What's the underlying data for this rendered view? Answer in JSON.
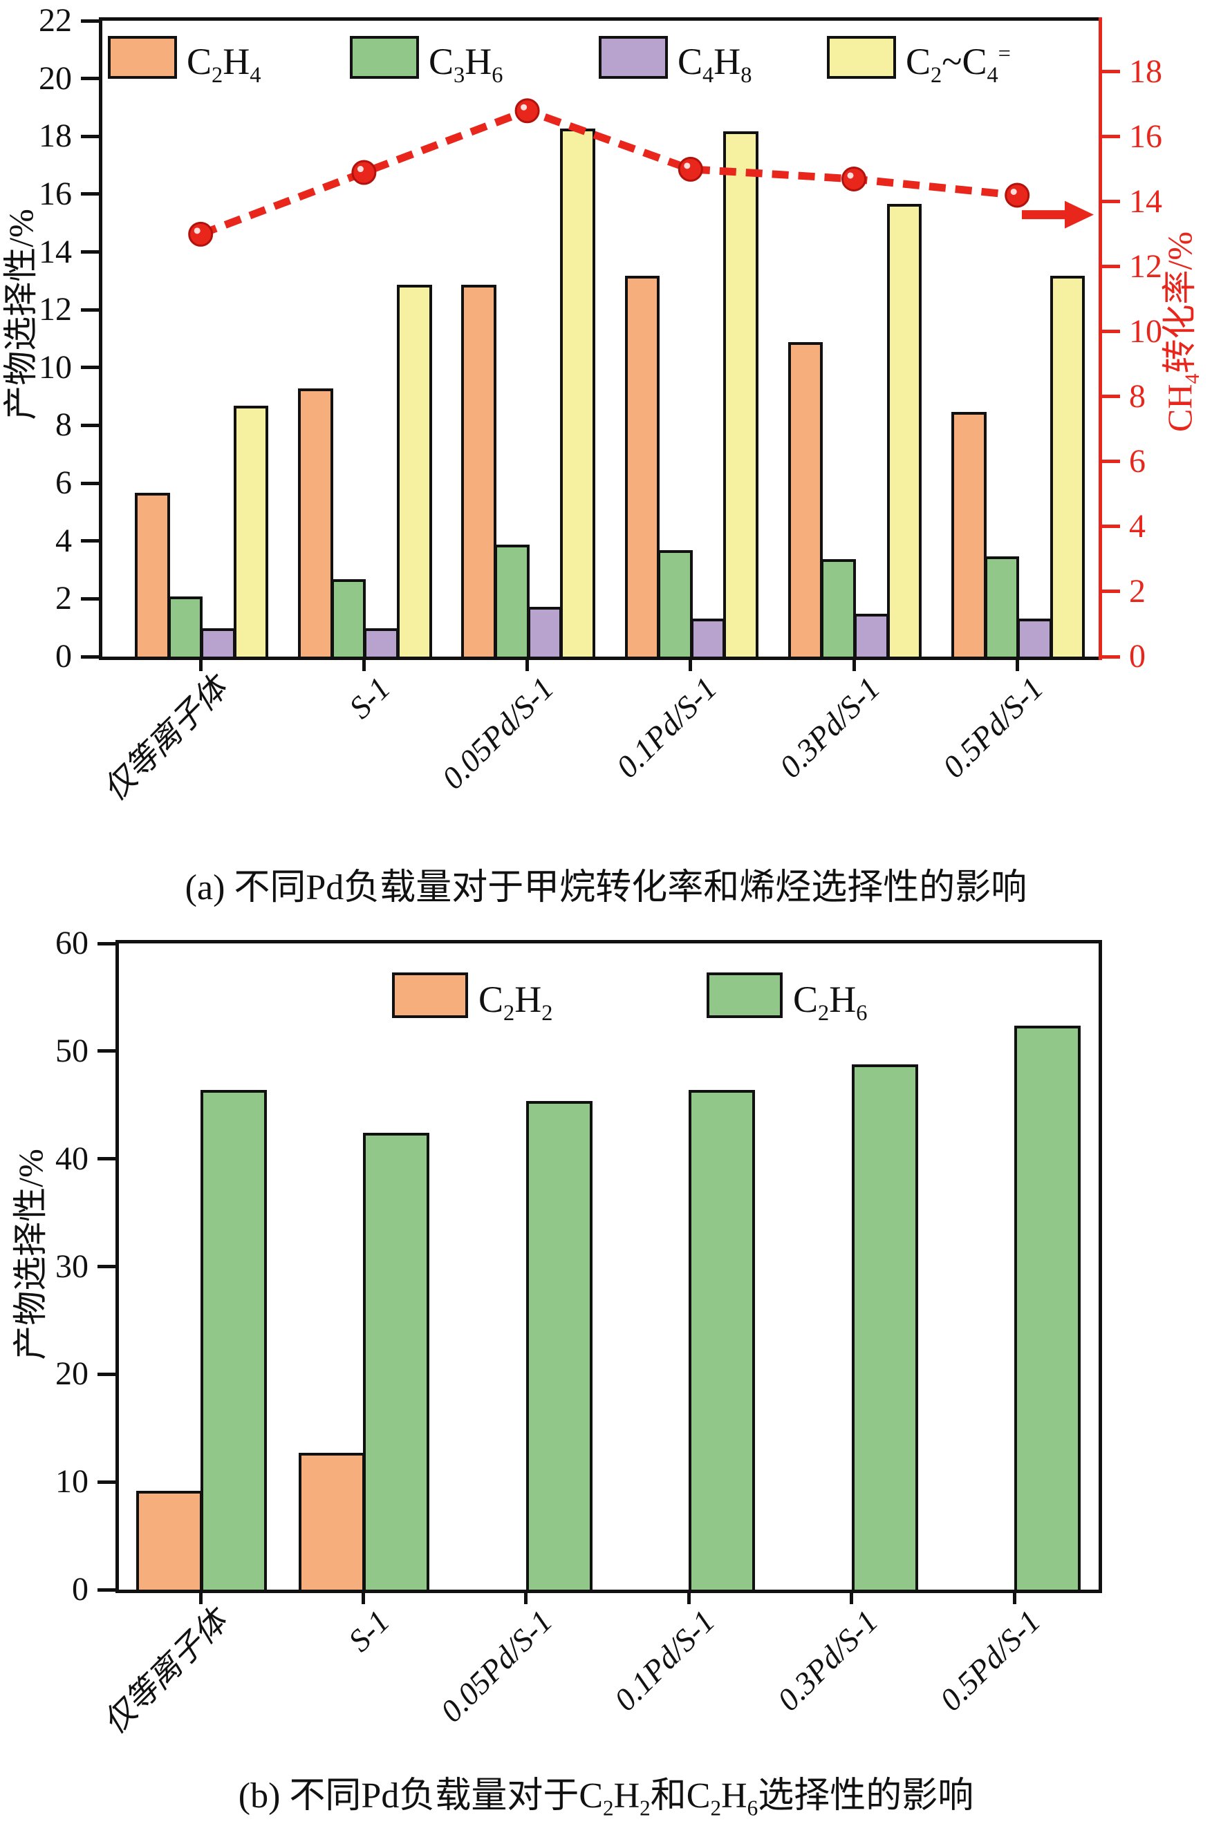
{
  "colors": {
    "c2h4_orange": "#F6AE7D",
    "c3h6_green": "#91C788",
    "c4h8_purple": "#B8A3CE",
    "c2c4_yellow": "#F5F1A1",
    "line_red": "#E8261C",
    "axis_black": "#111111"
  },
  "categories": [
    "仅等离子体",
    "S-1",
    "0.05Pd/S-1",
    "0.1Pd/S-1",
    "0.3Pd/S-1",
    "0.5Pd/S-1"
  ],
  "chart_data": [
    {
      "type": "bar",
      "panel": "a",
      "title": "(a) 不同Pd负载量对于甲烷转化率和烯烃选择性的影响",
      "categories": [
        "仅等离子体",
        "S-1",
        "0.05Pd/S-1",
        "0.1Pd/S-1",
        "0.3Pd/S-1",
        "0.5Pd/S-1"
      ],
      "ylabel_left": "产物选择性/%",
      "ylabel_right_rich": [
        {
          "t": "CH"
        },
        {
          "sub": "4"
        },
        {
          "t": "转化率/%"
        }
      ],
      "left_axis": {
        "min": 0,
        "max": 22,
        "step": 2,
        "label": "产物选择性/%"
      },
      "right_axis": {
        "min": 0,
        "max": 18,
        "step": 2,
        "top_value": 19.57,
        "label": "CH4转化率/%",
        "color": "#E8261C"
      },
      "grid": false,
      "legend_position": "top-inside",
      "legend": [
        {
          "color_key": "c2h4_orange",
          "rich": [
            {
              "t": "C"
            },
            {
              "sub": "2"
            },
            {
              "t": "H"
            },
            {
              "sub": "4"
            }
          ]
        },
        {
          "color_key": "c3h6_green",
          "rich": [
            {
              "t": "C"
            },
            {
              "sub": "3"
            },
            {
              "t": "H"
            },
            {
              "sub": "6"
            }
          ]
        },
        {
          "color_key": "c4h8_purple",
          "rich": [
            {
              "t": "C"
            },
            {
              "sub": "4"
            },
            {
              "t": "H"
            },
            {
              "sub": "8"
            }
          ]
        },
        {
          "color_key": "c2c4_yellow",
          "rich": [
            {
              "t": "C"
            },
            {
              "sub": "2"
            },
            {
              "t": "~C"
            },
            {
              "sub": "4"
            },
            {
              "sup": "="
            }
          ]
        }
      ],
      "series": [
        {
          "name": "C2H4",
          "color_key": "c2h4_orange",
          "values": [
            5.6,
            9.2,
            12.8,
            13.1,
            10.8,
            8.4
          ]
        },
        {
          "name": "C3H6",
          "color_key": "c3h6_green",
          "values": [
            2.0,
            2.6,
            3.8,
            3.6,
            3.3,
            3.4
          ]
        },
        {
          "name": "C4H8",
          "color_key": "c4h8_purple",
          "values": [
            0.9,
            0.9,
            1.65,
            1.25,
            1.4,
            1.25
          ]
        },
        {
          "name": "C2~C4=",
          "color_key": "c2c4_yellow",
          "values": [
            8.6,
            12.8,
            18.2,
            18.1,
            15.6,
            13.1
          ]
        }
      ],
      "line_series": {
        "name": "CH4转化率",
        "axis": "right",
        "color": "#E8261C",
        "style": "dashed-with-round-markers",
        "values": [
          13.0,
          14.9,
          16.8,
          15.0,
          14.7,
          14.2
        ],
        "arrow_annotation": {
          "points_to": "right-axis",
          "value": 13.6
        }
      }
    },
    {
      "type": "bar",
      "panel": "b",
      "title_rich": [
        {
          "t": "(b) 不同Pd负载量对于C"
        },
        {
          "sub": "2"
        },
        {
          "t": "H"
        },
        {
          "sub": "2"
        },
        {
          "t": "和C"
        },
        {
          "sub": "2"
        },
        {
          "t": "H"
        },
        {
          "sub": "6"
        },
        {
          "t": "选择性的影响"
        }
      ],
      "categories": [
        "仅等离子体",
        "S-1",
        "0.05Pd/S-1",
        "0.1Pd/S-1",
        "0.3Pd/S-1",
        "0.5Pd/S-1"
      ],
      "ylabel_left": "产物选择性/%",
      "left_axis": {
        "min": 0,
        "max": 60,
        "step": 10,
        "label": "产物选择性/%"
      },
      "grid": false,
      "legend_position": "top-inside-center",
      "legend": [
        {
          "color_key": "c2h4_orange",
          "rich": [
            {
              "t": "C"
            },
            {
              "sub": "2"
            },
            {
              "t": "H"
            },
            {
              "sub": "2"
            }
          ]
        },
        {
          "color_key": "c3h6_green",
          "rich": [
            {
              "t": "C"
            },
            {
              "sub": "2"
            },
            {
              "t": "H"
            },
            {
              "sub": "6"
            }
          ]
        }
      ],
      "series": [
        {
          "name": "C2H2",
          "color_key": "c2h4_orange",
          "values": [
            9.0,
            12.5,
            0,
            0,
            0,
            0
          ]
        },
        {
          "name": "C2H6",
          "color_key": "c3h6_green",
          "values": [
            46.2,
            42.2,
            45.2,
            46.2,
            48.6,
            52.2
          ]
        }
      ]
    }
  ]
}
